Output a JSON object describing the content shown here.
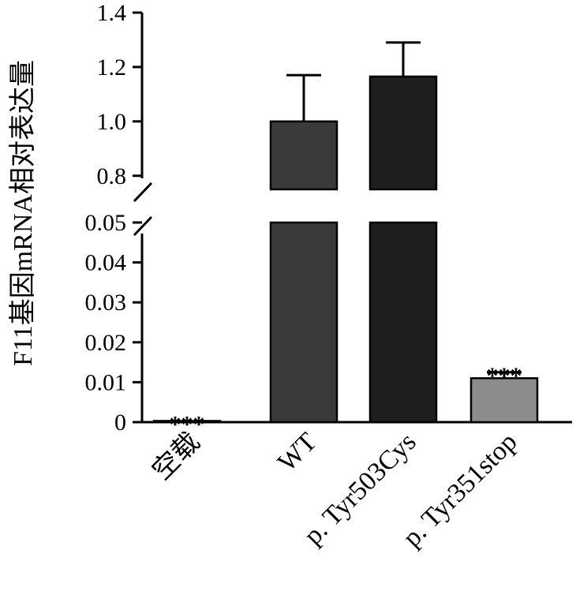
{
  "chart_data": {
    "type": "bar",
    "title": "",
    "xlabel": "",
    "ylabel": "F11基因mRNA相对表达量",
    "categories": [
      "空载",
      "WT",
      "p. Tyr503Cys",
      "p. Tyr351stop"
    ],
    "values": [
      0.0003,
      1.0,
      1.165,
      0.011
    ],
    "errors": [
      0.0,
      0.17,
      0.125,
      0.0015
    ],
    "significance": [
      "***",
      "",
      "",
      "***"
    ],
    "bar_colors": [
      "#ffffff",
      "#3a3a3a",
      "#1e1e1e",
      "#8c8c8c"
    ],
    "axis_break": true,
    "lower_ylim": [
      0,
      0.05
    ],
    "lower_yticks": [
      {
        "value": 0,
        "label": "0"
      },
      {
        "value": 0.01,
        "label": "0.01"
      },
      {
        "value": 0.02,
        "label": "0.02"
      },
      {
        "value": 0.03,
        "label": "0.03"
      },
      {
        "value": 0.04,
        "label": "0.04"
      },
      {
        "value": 0.05,
        "label": "0.05"
      }
    ],
    "upper_ylim": [
      0.75,
      1.4
    ],
    "upper_yticks": [
      {
        "value": 0.8,
        "label": "0.8"
      },
      {
        "value": 1.0,
        "label": "1.0"
      },
      {
        "value": 1.2,
        "label": "1.2"
      },
      {
        "value": 1.4,
        "label": "1.4"
      }
    ],
    "grid": false,
    "legend": "none"
  }
}
